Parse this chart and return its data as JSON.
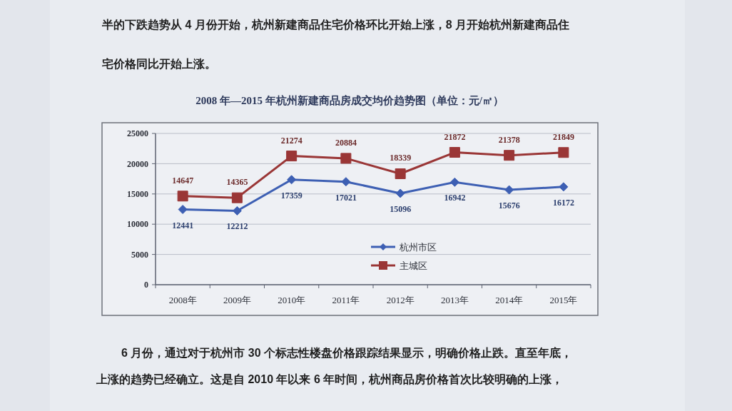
{
  "chart_data": {
    "type": "line",
    "title": "2008 年—2015 年杭州新建商品房成交均价趋势图（单位：元/㎡）",
    "annotations": [
      "半的下跌趋势从 4 月份开始，杭州新建商品住宅价格环比开始上涨，8 月开始杭州新建商品住",
      "宅价格同比开始上涨。",
      "6 月份，通过对于杭州市 30 个标志性楼盘价格跟踪结果显示，明确价格止跌。直至年底，",
      "上涨的趋势已经确立。这是自 2010 年以来 6 年时间，杭州商品房价格首次比较明确的上涨，"
    ],
    "categories": [
      "2008年",
      "2009年",
      "2010年",
      "2011年",
      "2012年",
      "2013年",
      "2014年",
      "2015年"
    ],
    "series": [
      {
        "name": "杭州市区",
        "color": "#3d5fb3",
        "marker": "diamond",
        "values": [
          12441,
          12212,
          17359,
          17021,
          15096,
          16942,
          15676,
          16172
        ]
      },
      {
        "name": "主城区",
        "color": "#9a3636",
        "marker": "square",
        "values": [
          14647,
          14365,
          21274,
          20884,
          18339,
          21872,
          21378,
          21849
        ]
      }
    ],
    "ylim": [
      0,
      25000
    ],
    "yticks": [
      0,
      5000,
      10000,
      15000,
      20000,
      25000
    ],
    "grid": "y",
    "legend": "bottom",
    "data_labels": true
  }
}
